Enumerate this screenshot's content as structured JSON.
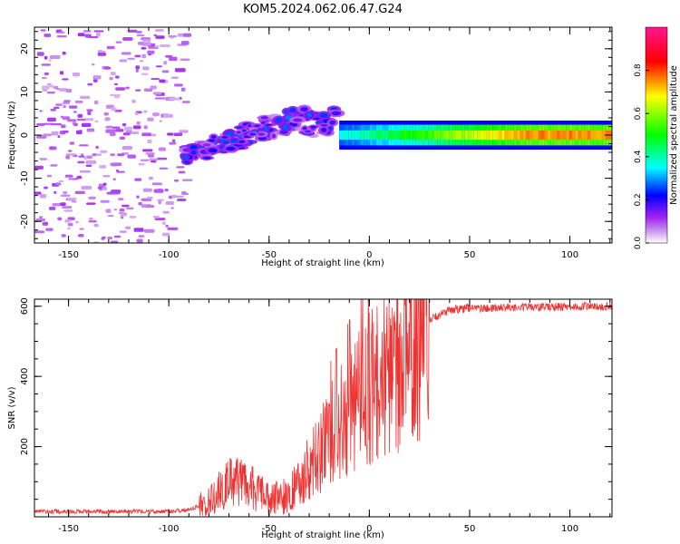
{
  "figure": {
    "title": "KOM5.2024.062.06.47.G24"
  },
  "chart_data": [
    {
      "type": "heatmap",
      "xlabel": "Height of straight line (km)",
      "ylabel": "Frequency (Hz)",
      "xlim": [
        -167,
        121
      ],
      "ylim": [
        -25,
        25
      ],
      "xticks": [
        -150,
        -100,
        -50,
        0,
        50,
        100
      ],
      "yticks": [
        -20,
        -10,
        0,
        10,
        20
      ],
      "colorbar": {
        "label": "Normalized spectral amplitude",
        "range": [
          0,
          1
        ],
        "ticks": [
          "0.0",
          "0.2",
          "0.4",
          "0.6",
          "0.8"
        ],
        "colors": [
          "#ffffff",
          "#a020f0",
          "#0000ff",
          "#00ffff",
          "#00ff00",
          "#ffff00",
          "#ff0000",
          "#ff1493"
        ]
      },
      "features": [
        {
          "name": "noise",
          "x_range": [
            -167,
            -92
          ],
          "y_range": [
            -25,
            25
          ],
          "amplitude": 0.08
        },
        {
          "name": "transition",
          "x_range": [
            -92,
            -15
          ],
          "y_center": [
            -5,
            3
          ],
          "y_width": [
            4,
            7
          ],
          "amplitude": 0.18
        },
        {
          "name": "carrier",
          "x_range": [
            -15,
            121
          ],
          "y_center": 0,
          "y_width": 1.2,
          "amplitude_start": 0.35,
          "amplitude_end": 0.75
        }
      ]
    },
    {
      "type": "line",
      "xlabel": "Height of straight line (km)",
      "ylabel": "SNR (v/v)",
      "xlim": [
        -167,
        121
      ],
      "ylim": [
        0,
        620
      ],
      "xticks": [
        -150,
        -100,
        -50,
        0,
        50,
        100
      ],
      "yticks": [
        200,
        400,
        600
      ],
      "line_color": "#ee3333",
      "trend": [
        {
          "x": -167,
          "y": 15
        },
        {
          "x": -100,
          "y": 15
        },
        {
          "x": -90,
          "y": 20
        },
        {
          "x": -80,
          "y": 40
        },
        {
          "x": -70,
          "y": 100
        },
        {
          "x": -60,
          "y": 90
        },
        {
          "x": -50,
          "y": 50
        },
        {
          "x": -40,
          "y": 60
        },
        {
          "x": -30,
          "y": 140
        },
        {
          "x": -20,
          "y": 230
        },
        {
          "x": -10,
          "y": 300
        },
        {
          "x": 0,
          "y": 370
        },
        {
          "x": 10,
          "y": 400
        },
        {
          "x": 20,
          "y": 470
        },
        {
          "x": 30,
          "y": 560
        },
        {
          "x": 40,
          "y": 590
        },
        {
          "x": 50,
          "y": 595
        },
        {
          "x": 121,
          "y": 600
        }
      ]
    }
  ]
}
